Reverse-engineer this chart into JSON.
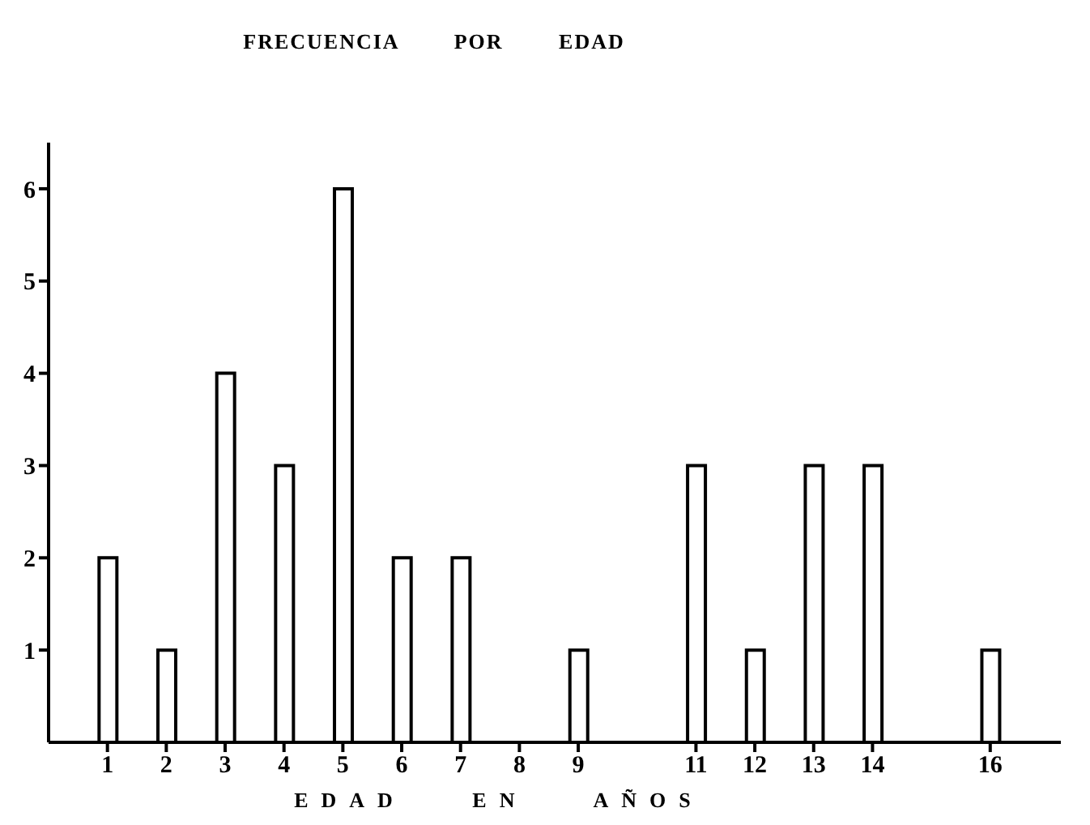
{
  "chart_data": {
    "type": "bar",
    "title": "FRECUENCIA POR EDAD",
    "xlabel": "EDAD EN AÑOS",
    "x": [
      1,
      2,
      3,
      4,
      5,
      6,
      7,
      8,
      9,
      11,
      12,
      13,
      14,
      16
    ],
    "values": [
      2,
      1,
      4,
      3,
      6,
      2,
      2,
      0,
      1,
      3,
      1,
      3,
      3,
      1
    ],
    "color": "#ffffff",
    "xlim": [
      0,
      17.2
    ],
    "xticks": [
      1,
      2,
      3,
      4,
      5,
      6,
      7,
      8,
      9,
      11,
      12,
      13,
      14,
      16
    ],
    "ylim": [
      0,
      6.5
    ],
    "yticks": [
      1,
      2,
      3,
      4,
      5,
      6
    ],
    "grid": false,
    "legend": false
  }
}
